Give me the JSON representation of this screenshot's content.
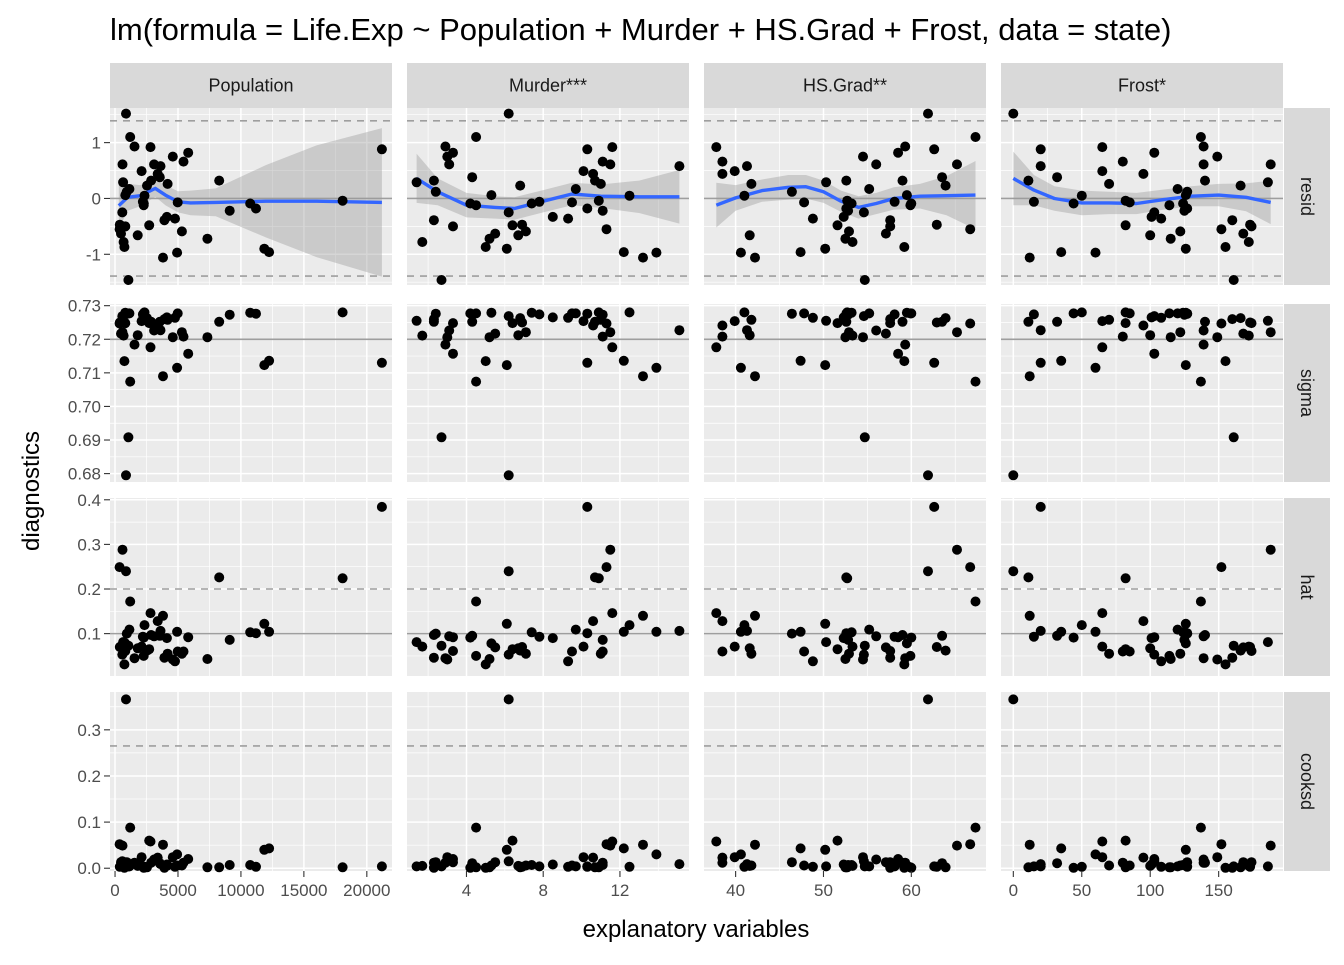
{
  "chart_data": {
    "type": "scatter",
    "title": "lm(formula = Life.Exp ~ Population + Murder + HS.Grad + Frost, data = state)",
    "xlabel": "explanatory variables",
    "ylabel": "diagnostics",
    "colors": {
      "panel_bg": "#ebebeb",
      "grid": "#ffffff",
      "strip_bg": "#d9d9d9",
      "point": "#000000",
      "smooth": "#3366ff",
      "ribbon": "#999999",
      "reference_line": "#9e9e9e"
    },
    "columns": [
      {
        "name": "Population",
        "label": "Population",
        "xlim": [
          -400,
          22000
        ],
        "ticks": [
          0,
          5000,
          10000,
          15000,
          20000
        ],
        "tick_labels": [
          "0",
          "5000",
          "10000",
          "15000",
          "20000"
        ],
        "x": [
          3615,
          365,
          2212,
          2110,
          21198,
          2541,
          3100,
          579,
          8277,
          4931,
          868,
          813,
          11197,
          5313,
          2861,
          2280,
          3387,
          3806,
          1058,
          4122,
          5814,
          9111,
          3921,
          2341,
          4767,
          746,
          1544,
          590,
          812,
          7333,
          1144,
          18076,
          5441,
          637,
          10735,
          2715,
          2284,
          11860,
          931,
          2816,
          681,
          4173,
          12237,
          1203,
          472,
          4981,
          3559,
          1799,
          4589,
          376
        ]
      },
      {
        "name": "Murder",
        "label": "Murder***",
        "xlim": [
          0.9,
          15.6
        ],
        "ticks": [
          4,
          8,
          12
        ],
        "tick_labels": [
          "4",
          "8",
          "12"
        ],
        "x": [
          15.1,
          11.3,
          7.8,
          10.1,
          10.3,
          6.8,
          3.1,
          6.2,
          10.7,
          13.9,
          6.2,
          5.3,
          10.3,
          7.1,
          2.3,
          4.5,
          10.6,
          13.2,
          2.7,
          8.5,
          3.3,
          11.1,
          2.3,
          12.5,
          9.3,
          5.0,
          2.9,
          11.5,
          3.3,
          5.2,
          9.7,
          10.9,
          11.1,
          1.4,
          7.4,
          6.4,
          4.2,
          6.1,
          2.4,
          11.6,
          1.7,
          11.0,
          12.2,
          4.5,
          5.5,
          9.5,
          4.3,
          6.7,
          3.0,
          6.9
        ]
      },
      {
        "name": "HS.Grad",
        "label": "HS.Grad**",
        "xlim": [
          36.4,
          68.5
        ],
        "ticks": [
          40,
          50,
          60
        ],
        "tick_labels": [
          "40",
          "50",
          "60"
        ],
        "x": [
          41.3,
          66.7,
          58.1,
          39.9,
          62.6,
          63.9,
          56.0,
          54.6,
          52.6,
          40.6,
          61.9,
          59.5,
          52.6,
          52.9,
          59.0,
          59.9,
          38.5,
          42.2,
          54.7,
          52.3,
          58.5,
          52.8,
          57.6,
          41.0,
          48.8,
          59.2,
          59.3,
          65.2,
          57.6,
          52.5,
          55.2,
          52.7,
          38.5,
          50.3,
          53.2,
          51.6,
          60.0,
          50.2,
          46.4,
          37.8,
          53.3,
          41.8,
          47.4,
          67.3,
          57.1,
          47.8,
          63.5,
          41.6,
          54.5,
          62.9
        ]
      },
      {
        "name": "Frost",
        "label": "Frost*",
        "xlim": [
          -9,
          197
        ],
        "ticks": [
          0,
          50,
          100,
          150
        ],
        "tick_labels": [
          "0",
          "50",
          "100",
          "150"
        ],
        "x": [
          20,
          152,
          15,
          65,
          20,
          166,
          139,
          103,
          11,
          60,
          0,
          126,
          127,
          122,
          140,
          114,
          95,
          12,
          161,
          101,
          103,
          125,
          160,
          50,
          108,
          155,
          139,
          188,
          174,
          115,
          120,
          82,
          80,
          186,
          124,
          82,
          44,
          126,
          127,
          65,
          172,
          70,
          35,
          137,
          168,
          85,
          32,
          100,
          149,
          173
        ]
      }
    ],
    "rows": [
      {
        "name": "resid",
        "label": "resid",
        "ylim": [
          -1.55,
          1.62
        ],
        "ticks": [
          -1,
          0,
          1
        ],
        "tick_labels": [
          "-1",
          "0",
          "1"
        ],
        "reference": 0,
        "cutoffs": [
          -1.39,
          1.39
        ],
        "y": [
          0.58,
          -0.55,
          -0.06,
          0.49,
          0.88,
          0.23,
          0.61,
          -0.25,
          0.32,
          -0.97,
          1.52,
          0.06,
          -0.18,
          -0.59,
          0.32,
          -0.12,
          0.44,
          -1.06,
          -1.46,
          -0.33,
          0.82,
          -0.22,
          -0.39,
          0.05,
          -0.36,
          -0.87,
          0.93,
          0.61,
          -0.5,
          -0.72,
          0.17,
          -0.04,
          0.66,
          0.29,
          -0.09,
          -0.48,
          -0.09,
          -0.9,
          0.12,
          0.92,
          -0.78,
          0.26,
          -0.96,
          1.1,
          -0.63,
          -0.07,
          0.38,
          -0.66,
          0.75,
          -0.47
        ],
        "smooth": [
          {
            "x": [
              300,
              1000,
              2000,
              3200,
              4000,
              5000,
              6000,
              8000,
              12000,
              16000,
              21200
            ],
            "y": [
              -0.13,
              0.02,
              0.05,
              0.18,
              0.06,
              -0.06,
              -0.08,
              -0.07,
              -0.05,
              -0.05,
              -0.07
            ],
            "ymin": [
              -0.55,
              -0.22,
              -0.14,
              0.03,
              -0.12,
              -0.25,
              -0.3,
              -0.32,
              -0.7,
              -1.05,
              -1.4
            ],
            "ymax": [
              0.29,
              0.26,
              0.24,
              0.33,
              0.24,
              0.13,
              0.14,
              0.18,
              0.6,
              0.95,
              1.26
            ]
          },
          {
            "x": [
              1.4,
              2.5,
              4.0,
              5.5,
              6.5,
              8.0,
              9.5,
              11.0,
              13.0,
              15.1
            ],
            "y": [
              0.36,
              0.12,
              -0.12,
              -0.16,
              -0.18,
              -0.05,
              0.08,
              0.04,
              0.03,
              0.03
            ],
            "ymin": [
              -0.08,
              -0.12,
              -0.34,
              -0.36,
              -0.38,
              -0.25,
              -0.12,
              -0.17,
              -0.26,
              -0.45
            ],
            "ymax": [
              0.8,
              0.36,
              0.1,
              0.04,
              0.02,
              0.15,
              0.28,
              0.25,
              0.32,
              0.51
            ]
          },
          {
            "x": [
              37.8,
              40,
              43,
              46,
              48,
              50,
              52,
              54,
              56,
              58,
              61,
              64,
              67.3
            ],
            "y": [
              -0.12,
              0.01,
              0.14,
              0.2,
              0.21,
              0.12,
              -0.05,
              -0.16,
              -0.09,
              0.0,
              0.04,
              0.05,
              0.06
            ],
            "ymin": [
              -0.52,
              -0.22,
              -0.06,
              -0.02,
              0.0,
              -0.08,
              -0.24,
              -0.36,
              -0.28,
              -0.2,
              -0.18,
              -0.3,
              -0.55
            ],
            "ymax": [
              0.28,
              0.24,
              0.34,
              0.42,
              0.42,
              0.32,
              0.14,
              0.04,
              0.1,
              0.2,
              0.26,
              0.4,
              0.67
            ]
          },
          {
            "x": [
              0,
              15,
              30,
              50,
              70,
              90,
              110,
              130,
              150,
              170,
              188
            ],
            "y": [
              0.36,
              0.15,
              0.0,
              -0.08,
              -0.08,
              -0.09,
              -0.02,
              0.04,
              0.06,
              0.02,
              -0.07
            ],
            "ymin": [
              -0.12,
              -0.12,
              -0.22,
              -0.3,
              -0.28,
              -0.28,
              -0.2,
              -0.14,
              -0.14,
              -0.23,
              -0.46
            ],
            "ymax": [
              0.84,
              0.42,
              0.22,
              0.14,
              0.12,
              0.1,
              0.16,
              0.22,
              0.26,
              0.27,
              0.32
            ]
          }
        ]
      },
      {
        "name": "sigma",
        "label": "sigma",
        "ylim": [
          0.6775,
          0.7305
        ],
        "ticks": [
          0.68,
          0.69,
          0.7,
          0.71,
          0.72,
          0.73
        ],
        "tick_labels": [
          "0.68",
          "0.69",
          "0.70",
          "0.71",
          "0.72",
          "0.73"
        ],
        "reference": 0.72,
        "cutoffs": [],
        "y": [
          0.7227,
          0.7247,
          0.7274,
          0.7254,
          0.713,
          0.7263,
          0.7226,
          0.7269,
          0.7252,
          0.7115,
          0.6795,
          0.7279,
          0.7276,
          0.7221,
          0.7252,
          0.7277,
          0.7241,
          0.709,
          0.6908,
          0.7265,
          0.7157,
          0.7273,
          0.726,
          0.728,
          0.7264,
          0.7135,
          0.7184,
          0.7221,
          0.7248,
          0.7206,
          0.7277,
          0.728,
          0.7208,
          0.7255,
          0.7279,
          0.7248,
          0.7277,
          0.7123,
          0.7276,
          0.7176,
          0.7211,
          0.7258,
          0.7136,
          0.7074,
          0.7217,
          0.7277,
          0.7252,
          0.7212,
          0.7206,
          0.725
        ]
      },
      {
        "name": "hat",
        "label": "hat",
        "ylim": [
          0.005,
          0.404
        ],
        "ticks": [
          0.1,
          0.2,
          0.3,
          0.4
        ],
        "tick_labels": [
          "0.1",
          "0.2",
          "0.3",
          "0.4"
        ],
        "reference": 0.1,
        "cutoffs": [
          0.2
        ],
        "y": [
          0.106,
          0.249,
          0.093,
          0.071,
          0.384,
          0.062,
          0.094,
          0.053,
          0.226,
          0.104,
          0.24,
          0.078,
          0.101,
          0.055,
          0.097,
          0.05,
          0.128,
          0.14,
          0.073,
          0.09,
          0.092,
          0.086,
          0.046,
          0.119,
          0.038,
          0.031,
          0.045,
          0.288,
          0.061,
          0.043,
          0.109,
          0.224,
          0.06,
          0.081,
          0.103,
          0.065,
          0.091,
          0.122,
          0.1,
          0.146,
          0.071,
          0.055,
          0.104,
          0.172,
          0.069,
          0.06,
          0.095,
          0.067,
          0.042,
          0.07
        ]
      },
      {
        "name": "cooksd",
        "label": "cooksd",
        "ylim": [
          -0.006,
          0.382
        ],
        "ticks": [
          0.0,
          0.1,
          0.2,
          0.3
        ],
        "tick_labels": [
          "0.0",
          "0.1",
          "0.2",
          "0.3"
        ],
        "reference": null,
        "cutoffs": [
          0.265
        ],
        "y": [
          0.009,
          0.052,
          0.004,
          0.024,
          0.004,
          0.002,
          0.019,
          0.015,
          0.002,
          0.03,
          0.366,
          0.006,
          0.003,
          0.006,
          0.012,
          0.002,
          0.023,
          0.051,
          0.004,
          0.008,
          0.02,
          0.007,
          0.001,
          0.003,
          0.003,
          0.001,
          0.012,
          0.049,
          0.013,
          0.002,
          0.004,
          0.002,
          0.012,
          0.004,
          0.007,
          0.06,
          0.001,
          0.04,
          0.013,
          0.058,
          0.005,
          0.006,
          0.043,
          0.088,
          0.013,
          0.006,
          0.011,
          0.005,
          0.024,
          0.003
        ]
      }
    ]
  }
}
